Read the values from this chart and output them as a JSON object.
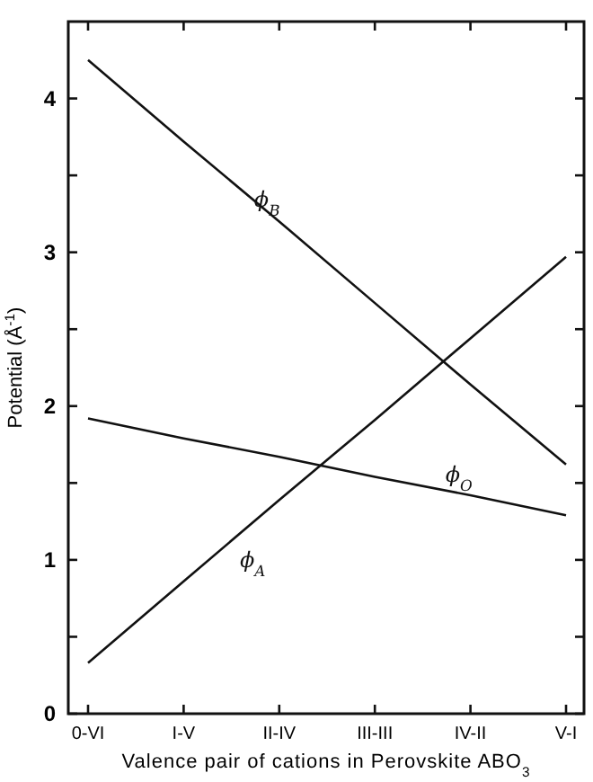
{
  "chart_data": {
    "type": "line",
    "xlabel": "Valence pair of cations in Perovskite ABO$_{3}$",
    "ylabel": "Potential (Å$^{-1}$)",
    "categories": [
      "0-VI",
      "I-V",
      "II-IV",
      "III-III",
      "IV-II",
      "V-I"
    ],
    "series": [
      {
        "name": "ϕ$_{B}$",
        "color": "#111111",
        "values": [
          4.25,
          3.72,
          3.2,
          2.67,
          2.14,
          1.62
        ]
      },
      {
        "name": "ϕ$_{O}$",
        "color": "#111111",
        "values": [
          1.92,
          1.79,
          1.67,
          1.54,
          1.42,
          1.29
        ]
      },
      {
        "name": "ϕ$_{A}$",
        "color": "#111111",
        "values": [
          0.33,
          0.86,
          1.39,
          1.91,
          2.44,
          2.97
        ]
      }
    ],
    "ylim": [
      0,
      4.5
    ],
    "yticks": [
      0,
      {
        "value": 0.5,
        "label": null
      },
      1,
      {
        "value": 1.5,
        "label": null
      },
      2,
      {
        "value": 2.5,
        "label": null
      },
      3,
      {
        "value": 3.5,
        "label": null
      },
      4
    ],
    "grid": false,
    "marker": "none",
    "line_style": "solid"
  }
}
